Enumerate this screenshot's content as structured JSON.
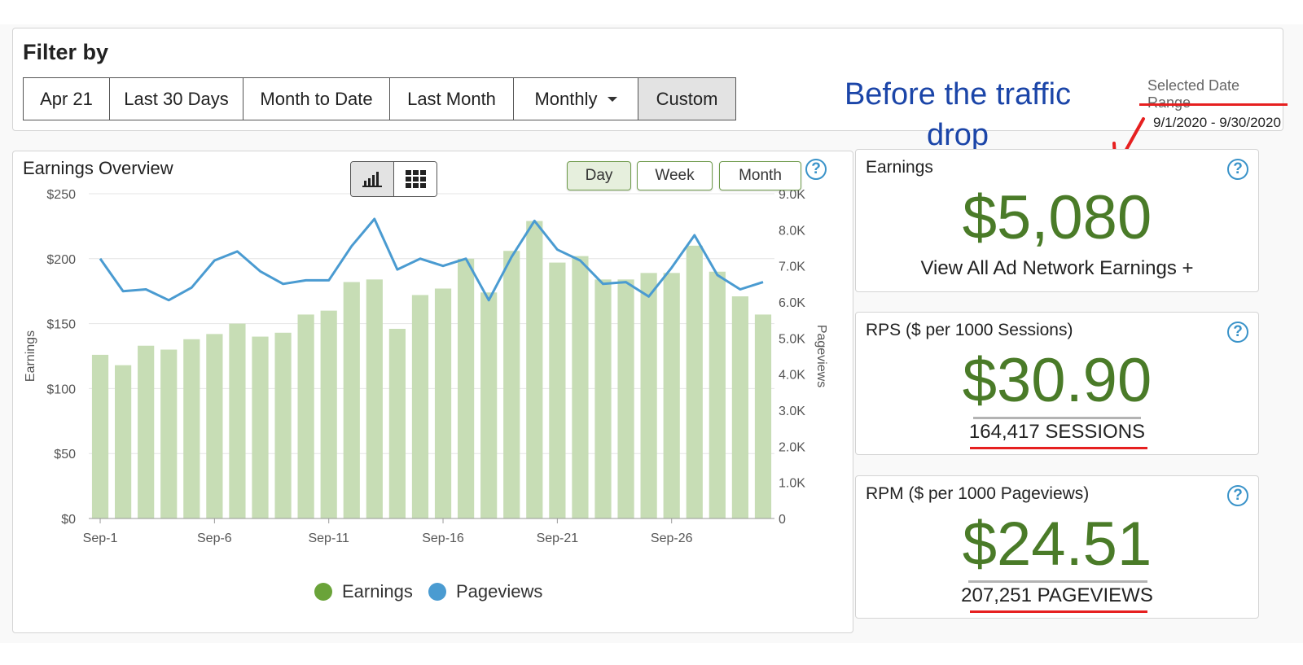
{
  "filter": {
    "title": "Filter by",
    "buttons": [
      "Apr 21",
      "Last 30 Days",
      "Month to Date",
      "Last Month",
      "Monthly",
      "Custom"
    ],
    "active": "Custom",
    "annotation_line1": "Before the traffic",
    "annotation_line2": "drop",
    "date_range_label": "Selected Date Range",
    "date_range_value": "9/1/2020 - 9/30/2020"
  },
  "overview": {
    "title": "Earnings Overview",
    "view_toggle_icons": [
      "bar-chart-icon",
      "grid-icon"
    ],
    "period_buttons": [
      "Day",
      "Week",
      "Month"
    ],
    "active_period": "Day",
    "help": "?",
    "legend": [
      {
        "label": "Earnings",
        "color": "#6aa339"
      },
      {
        "label": "Pageviews",
        "color": "#4a9bd1"
      }
    ]
  },
  "chart_data": {
    "type": "bar",
    "xlabel": "",
    "ylabel": "Earnings",
    "y2label": "Pageviews",
    "ylim": [
      0,
      250
    ],
    "y2lim": [
      0,
      9000
    ],
    "yticks": [
      "$0",
      "$50",
      "$100",
      "$150",
      "$200",
      "$250"
    ],
    "y2ticks": [
      "0",
      "1.0K",
      "2.0K",
      "3.0K",
      "4.0K",
      "5.0K",
      "6.0K",
      "7.0K",
      "8.0K",
      "9.0K"
    ],
    "xtick_labels": [
      "Sep-1",
      "Sep-6",
      "Sep-11",
      "Sep-16",
      "Sep-21",
      "Sep-26"
    ],
    "categories": [
      "Sep-1",
      "Sep-2",
      "Sep-3",
      "Sep-4",
      "Sep-5",
      "Sep-6",
      "Sep-7",
      "Sep-8",
      "Sep-9",
      "Sep-10",
      "Sep-11",
      "Sep-12",
      "Sep-13",
      "Sep-14",
      "Sep-15",
      "Sep-16",
      "Sep-17",
      "Sep-18",
      "Sep-19",
      "Sep-20",
      "Sep-21",
      "Sep-22",
      "Sep-23",
      "Sep-24",
      "Sep-25",
      "Sep-26",
      "Sep-27",
      "Sep-28",
      "Sep-29",
      "Sep-30"
    ],
    "series": [
      {
        "name": "Earnings",
        "type": "bar",
        "axis": "left",
        "values": [
          126,
          118,
          133,
          130,
          138,
          142,
          150,
          140,
          143,
          157,
          160,
          182,
          184,
          146,
          172,
          177,
          200,
          174,
          206,
          229,
          197,
          202,
          184,
          184,
          189,
          189,
          210,
          190,
          171,
          157
        ]
      },
      {
        "name": "Pageviews",
        "type": "line",
        "axis": "right",
        "values": [
          7200,
          6300,
          6350,
          6050,
          6400,
          7150,
          7400,
          6850,
          6500,
          6600,
          6600,
          7550,
          8300,
          6900,
          7200,
          7000,
          7200,
          6050,
          7250,
          8250,
          7450,
          7150,
          6500,
          6550,
          6150,
          6950,
          7850,
          6750,
          6350,
          6550
        ]
      }
    ],
    "grid": true,
    "legend_position": "bottom"
  },
  "cards": {
    "earnings": {
      "label": "Earnings",
      "value": "$5,080",
      "sub": "View All Ad Network Earnings +"
    },
    "rps": {
      "label": "RPS ($ per 1000 Sessions)",
      "value": "$30.90",
      "sub": "164,417 SESSIONS"
    },
    "rpm": {
      "label": "RPM ($ per 1000 Pageviews)",
      "value": "$24.51",
      "sub": "207,251 PAGEVIEWS"
    }
  },
  "colors": {
    "accent_green": "#4a7b28",
    "annotation_blue": "#1b45a8",
    "highlight_red": "#e62020",
    "help_blue": "#3a93c9"
  }
}
